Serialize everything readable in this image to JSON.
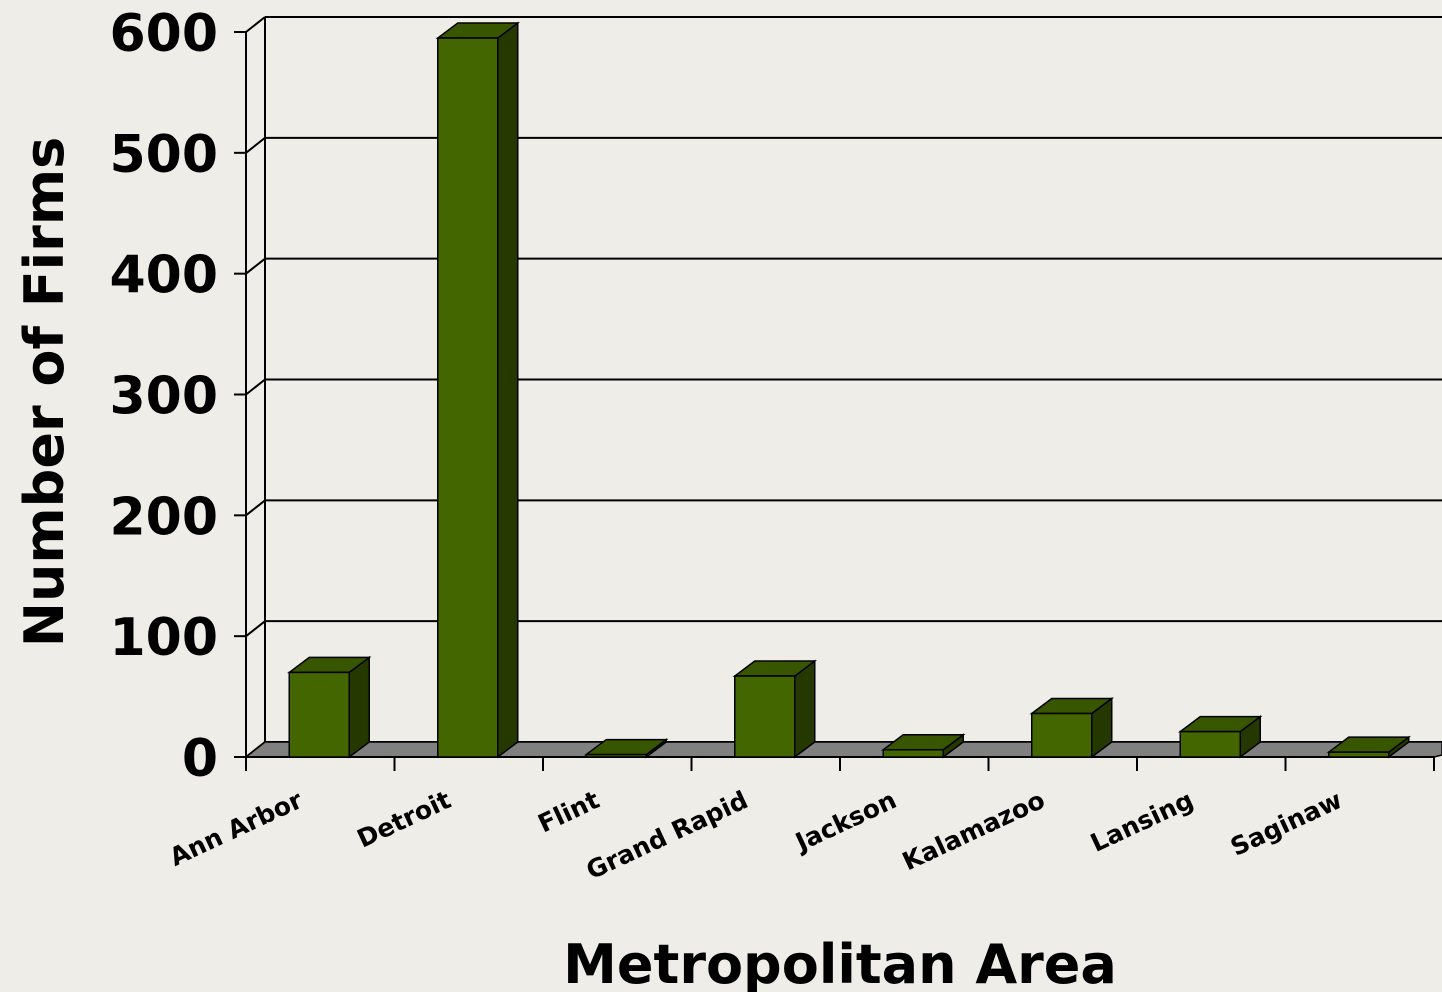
{
  "chart_data": {
    "type": "bar",
    "title": "",
    "xlabel": "Metropolitan Area",
    "ylabel": "Number of Firms",
    "categories": [
      "Ann Arbor",
      "Detroit",
      "Flint",
      "Grand Rapid",
      "Jackson",
      "Kalamazoo",
      "Lansing",
      "Saginaw"
    ],
    "values": [
      70,
      595,
      2,
      67,
      6,
      36,
      21,
      4
    ],
    "ylim": [
      0,
      600
    ],
    "yticks": [
      "0",
      "100",
      "200",
      "300",
      "400",
      "500",
      "600"
    ],
    "grid": true,
    "legend": "none",
    "colors": {
      "bar_front": "#446600",
      "bar_top": "#385500",
      "bar_side": "#253800",
      "floor": "#808080",
      "background": "#eeede8"
    }
  }
}
